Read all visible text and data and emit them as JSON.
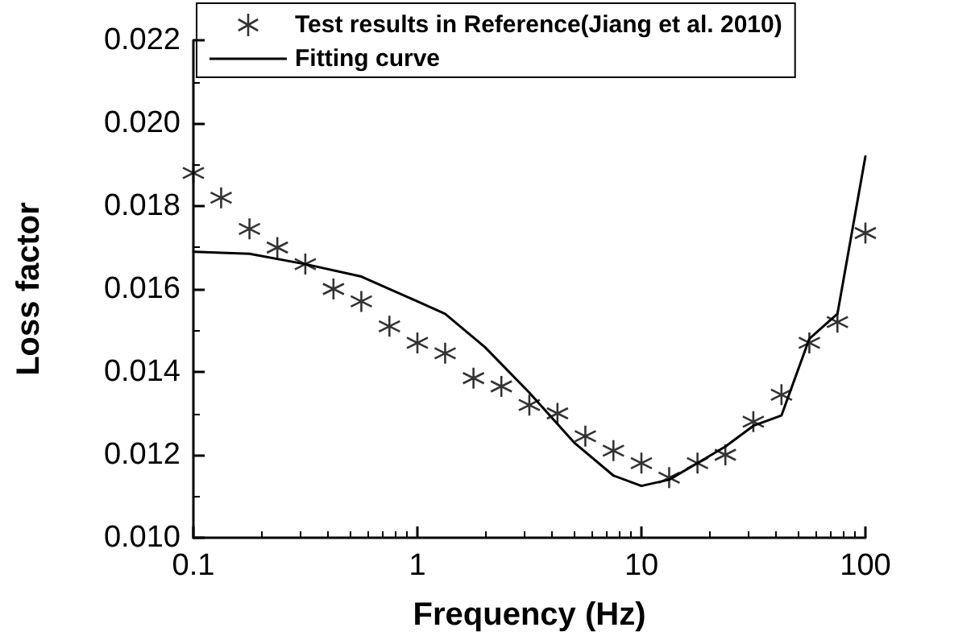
{
  "chart_data": {
    "type": "scatter",
    "xlabel": "Frequency (Hz)",
    "ylabel": "Loss factor",
    "log": "x",
    "xlim": [
      0.1,
      100
    ],
    "xticks": [
      0.1,
      1,
      10,
      100
    ],
    "ylim": [
      0.01,
      0.022
    ],
    "yticks": [
      {
        "value": 0.01,
        "label": "0.010"
      },
      {
        "value": 0.012,
        "label": "0.012"
      },
      {
        "value": 0.014,
        "label": "0.014"
      },
      {
        "value": 0.016,
        "label": "0.016"
      },
      {
        "value": 0.018,
        "label": "0.018"
      },
      {
        "value": 0.02,
        "label": "0.020"
      },
      {
        "value": 0.022,
        "label": "0.022"
      }
    ],
    "grid": false,
    "legend": "top",
    "series": [
      {
        "name": "Test results in Reference(Jiang et al. 2010)",
        "marker": "cross",
        "color": "#000000",
        "x": [
          0.1,
          0.133,
          0.178,
          0.237,
          0.316,
          0.422,
          0.562,
          0.75,
          1,
          1.33,
          1.78,
          2.37,
          3.16,
          4.22,
          5.62,
          7.5,
          10,
          13.3,
          17.8,
          23.7,
          31.6,
          42.2,
          56.2,
          75,
          100
        ],
        "values": [
          0.0188,
          0.0182,
          0.01745,
          0.017,
          0.0166,
          0.016,
          0.0157,
          0.0151,
          0.0147,
          0.01445,
          0.01385,
          0.01365,
          0.0132,
          0.013,
          0.01245,
          0.0121,
          0.0118,
          0.01145,
          0.0118,
          0.012,
          0.0128,
          0.01345,
          0.0147,
          0.0152,
          0.01735
        ]
      },
      {
        "name": "Fitting curve",
        "type": "line",
        "marker": "none",
        "line_style": "solid",
        "color": "#000000",
        "x": [
          0.1,
          0.178,
          0.316,
          0.562,
          1,
          1.33,
          2,
          3.16,
          5,
          7.5,
          10,
          13.3,
          17.8,
          23.7,
          31.6,
          42.2,
          56.2,
          75,
          100
        ],
        "values": [
          0.0169,
          0.01685,
          0.0166,
          0.0163,
          0.0157,
          0.0154,
          0.0146,
          0.0135,
          0.0123,
          0.0115,
          0.01125,
          0.0114,
          0.0118,
          0.0122,
          0.0127,
          0.01295,
          0.0148,
          0.0154,
          0.0192
        ]
      }
    ]
  }
}
